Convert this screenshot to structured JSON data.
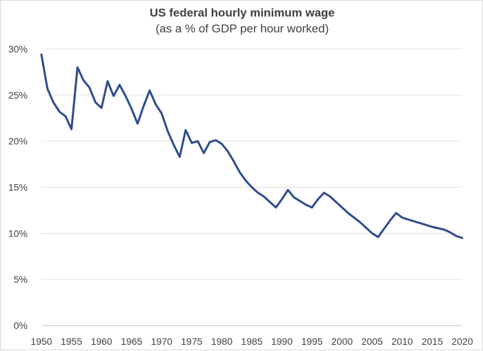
{
  "chart_data": {
    "type": "line",
    "title": "US federal hourly minimum wage",
    "subtitle": "(as a % of GDP per hour worked)",
    "xlabel": "",
    "ylabel": "",
    "xlim": [
      1950,
      2020
    ],
    "ylim": [
      0,
      30
    ],
    "x_ticks": [
      1950,
      1955,
      1960,
      1965,
      1970,
      1975,
      1980,
      1985,
      1990,
      1995,
      2000,
      2005,
      2010,
      2015,
      2020
    ],
    "x_tick_labels": [
      "1950",
      "1955",
      "1960",
      "1965",
      "1970",
      "1975",
      "1980",
      "1985",
      "1990",
      "1995",
      "2000",
      "2005",
      "2010",
      "2015",
      "2020"
    ],
    "y_ticks": [
      0,
      5,
      10,
      15,
      20,
      25,
      30
    ],
    "y_tick_labels": [
      "0%",
      "5%",
      "10%",
      "15%",
      "20%",
      "25%",
      "30%"
    ],
    "grid": true,
    "legend": "none",
    "series": [
      {
        "name": "Minimum wage as % of GDP per hour worked",
        "color": "#2e4b8f",
        "x": [
          1950,
          1951,
          1952,
          1953,
          1954,
          1955,
          1956,
          1957,
          1958,
          1959,
          1960,
          1961,
          1962,
          1963,
          1964,
          1965,
          1966,
          1967,
          1968,
          1969,
          1970,
          1971,
          1972,
          1973,
          1974,
          1975,
          1976,
          1977,
          1978,
          1979,
          1980,
          1981,
          1982,
          1983,
          1984,
          1985,
          1986,
          1987,
          1988,
          1989,
          1990,
          1991,
          1992,
          1993,
          1994,
          1995,
          1996,
          1997,
          1998,
          1999,
          2000,
          2001,
          2002,
          2003,
          2004,
          2005,
          2006,
          2007,
          2008,
          2009,
          2010,
          2011,
          2012,
          2013,
          2014,
          2015,
          2016,
          2017,
          2018,
          2019,
          2020
        ],
        "values": [
          29.4,
          25.7,
          24.2,
          23.2,
          22.7,
          21.3,
          28.0,
          26.6,
          25.8,
          24.2,
          23.6,
          26.5,
          24.9,
          26.1,
          24.9,
          23.5,
          21.9,
          23.8,
          25.5,
          24.0,
          23.0,
          21.1,
          19.6,
          18.3,
          21.2,
          19.8,
          20.0,
          18.7,
          19.9,
          20.1,
          19.7,
          18.9,
          17.8,
          16.6,
          15.7,
          15.0,
          14.4,
          14.0,
          13.4,
          12.8,
          13.7,
          14.7,
          13.9,
          13.5,
          13.1,
          12.8,
          13.7,
          14.4,
          14.0,
          13.4,
          12.8,
          12.2,
          11.7,
          11.2,
          10.6,
          10.0,
          9.6,
          10.5,
          11.4,
          12.2,
          11.7,
          11.5,
          11.3,
          11.1,
          10.9,
          10.7,
          10.55,
          10.4,
          10.1,
          9.7,
          9.5
        ]
      }
    ]
  }
}
